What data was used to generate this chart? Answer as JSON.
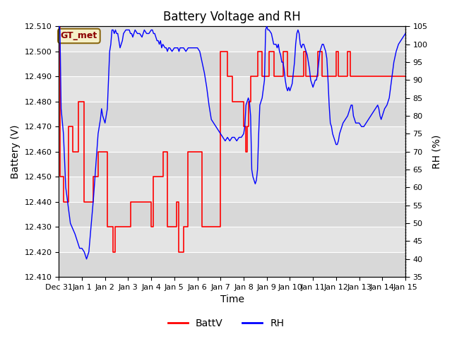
{
  "title": "Battery Voltage and RH",
  "xlabel": "Time",
  "ylabel_left": "Battery (V)",
  "ylabel_right": "RH (%)",
  "annotation": "GT_met",
  "ylim_left": [
    12.41,
    12.51
  ],
  "ylim_right": [
    35,
    105
  ],
  "yticks_left": [
    12.41,
    12.42,
    12.43,
    12.44,
    12.45,
    12.46,
    12.47,
    12.48,
    12.49,
    12.5,
    12.51
  ],
  "yticks_right": [
    35,
    40,
    45,
    50,
    55,
    60,
    65,
    70,
    75,
    80,
    85,
    90,
    95,
    100,
    105
  ],
  "xtick_labels": [
    "Dec 31",
    "Jan 1",
    "Jan 2",
    "Jan 3",
    "Jan 4",
    "Jan 5",
    "Jan 6",
    "Jan 7",
    "Jan 8",
    "Jan 9",
    "Jan 10",
    "Jan 11",
    "Jan 12",
    "Jan 13",
    "Jan 14",
    "Jan 15"
  ],
  "legend_labels": [
    "BattV",
    "RH"
  ],
  "legend_colors": [
    "red",
    "blue"
  ],
  "bg_color": "#e8e8e8",
  "grid_color": "white",
  "title_fontsize": 12,
  "axis_fontsize": 10,
  "tick_fontsize": 8,
  "annot_fontsize": 9,
  "annot_bg": "#f5f0c8",
  "annot_edge": "#8B6914",
  "stripe_colors": [
    "#e0e0e0",
    "#d0d0d0"
  ]
}
